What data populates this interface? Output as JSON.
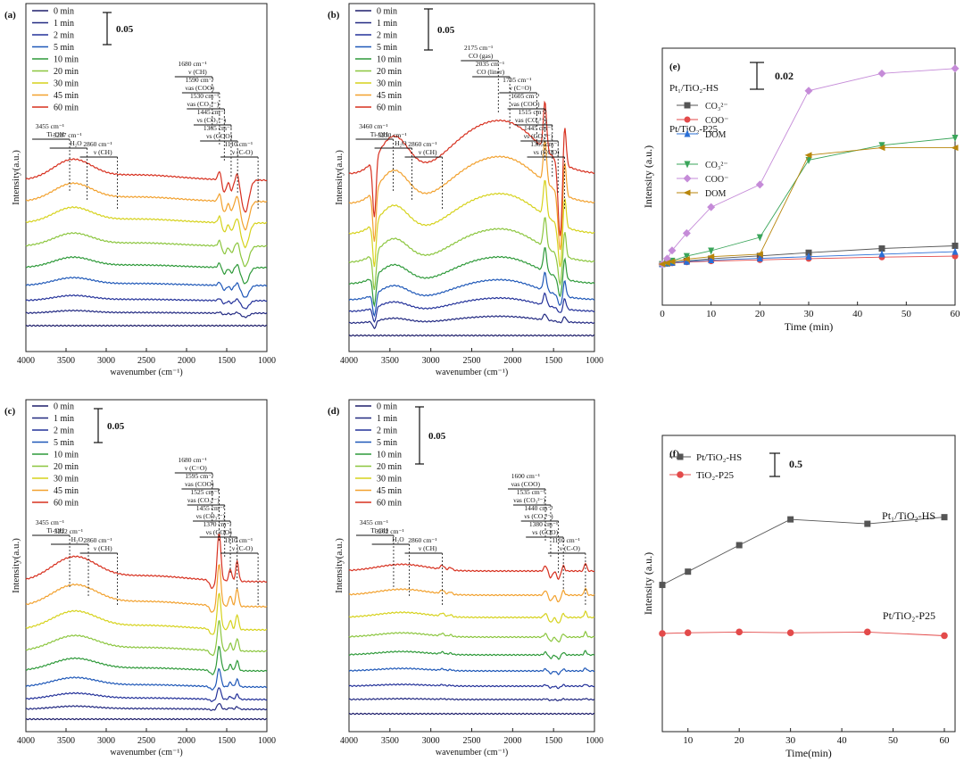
{
  "time_legend": [
    "0 min",
    "1 min",
    "2 min",
    "5 min",
    "10 min",
    "20 min",
    "30 min",
    "45 min",
    "60 min"
  ],
  "time_colors": [
    "#1f1f6b",
    "#232a82",
    "#24329a",
    "#1f58b8",
    "#2f9a3a",
    "#8cc63f",
    "#d6d21c",
    "#f2a12e",
    "#d7301f"
  ],
  "chart_data": [
    {
      "panel": "(a)",
      "type": "line",
      "xlabel": "wavenumber (cm⁻¹)",
      "ylabel": "Intensity(a.u.)",
      "xlim": [
        4000,
        1000
      ],
      "xticks": [
        "4000",
        "3500",
        "3000",
        "2500",
        "2000",
        "1500",
        "1000"
      ],
      "scale_bar": "0.05",
      "series_names": [
        "0 min",
        "1 min",
        "2 min",
        "5 min",
        "10 min",
        "20 min",
        "30 min",
        "45 min",
        "60 min"
      ],
      "annotations": [
        {
          "wn": 3455,
          "lines": [
            "3455 cm⁻¹",
            "Ti-OH"
          ]
        },
        {
          "wn": 3237,
          "lines": [
            "3237 cm⁻¹",
            "H₂O"
          ]
        },
        {
          "wn": 2860,
          "lines": [
            "2860 cm⁻¹",
            "ν (CH)"
          ]
        },
        {
          "wn": 1680,
          "lines": [
            "1680 cm⁻¹",
            "ν (CH)"
          ]
        },
        {
          "wn": 1590,
          "lines": [
            "1590 cm⁻¹",
            "νas (COO)"
          ]
        },
        {
          "wn": 1530,
          "lines": [
            "1530 cm⁻¹",
            "νas (CO₃²⁻)"
          ]
        },
        {
          "wn": 1445,
          "lines": [
            "1445 cm⁻¹",
            "νs (CO₃²⁻)"
          ]
        },
        {
          "wn": 1365,
          "lines": [
            "1365 cm⁻¹",
            "νs (COO)"
          ]
        },
        {
          "wn": 1110,
          "lines": [
            "1110 cm⁻¹",
            "ν (C-O)"
          ]
        }
      ]
    },
    {
      "panel": "(b)",
      "type": "line",
      "xlabel": "wavenumber (cm⁻¹)",
      "ylabel": "Intensity(a.u.)",
      "xlim": [
        4000,
        1000
      ],
      "xticks": [
        "4000",
        "3500",
        "3000",
        "2500",
        "2000",
        "1500",
        "1000"
      ],
      "scale_bar": "0.05",
      "series_names": [
        "0 min",
        "1 min",
        "2 min",
        "5 min",
        "10 min",
        "20 min",
        "30 min",
        "45 min",
        "60 min"
      ],
      "annotations": [
        {
          "wn": 3460,
          "lines": [
            "3460 cm⁻¹",
            "Ti-OH"
          ]
        },
        {
          "wn": 3230,
          "lines": [
            "3230 cm⁻¹",
            "H₂O"
          ]
        },
        {
          "wn": 2860,
          "lines": [
            "2860 cm⁻¹",
            "ν (CH)"
          ]
        },
        {
          "wn": 2175,
          "lines": [
            "2175 cm⁻¹",
            "CO (gas)"
          ]
        },
        {
          "wn": 2035,
          "lines": [
            "2035 cm⁻¹",
            "CO (liner)"
          ]
        },
        {
          "wn": 1705,
          "lines": [
            "1705 cm⁻¹",
            "ν (C=O)"
          ]
        },
        {
          "wn": 1605,
          "lines": [
            "1605 cm⁻¹",
            "νas (COO)"
          ]
        },
        {
          "wn": 1515,
          "lines": [
            "1515 cm⁻¹",
            "νas (CO₃²⁻)"
          ]
        },
        {
          "wn": 1445,
          "lines": [
            "1445 cm⁻¹",
            "νs (CO₃²⁻)"
          ]
        },
        {
          "wn": 1365,
          "lines": [
            "1365 cm⁻¹",
            "νs (COO)"
          ]
        }
      ]
    },
    {
      "panel": "(c)",
      "type": "line",
      "xlabel": "wavenumber (cm⁻¹)",
      "ylabel": "Intensity(a.u.)",
      "xlim": [
        4000,
        1000
      ],
      "xticks": [
        "4000",
        "3500",
        "3000",
        "2500",
        "2000",
        "1500",
        "1000"
      ],
      "scale_bar": "0.05",
      "series_names": [
        "0 min",
        "1 min",
        "2 min",
        "5 min",
        "10 min",
        "20 min",
        "30 min",
        "45 min",
        "60 min"
      ],
      "annotations": [
        {
          "wn": 3455,
          "lines": [
            "3455 cm⁻¹",
            "Ti-OH"
          ]
        },
        {
          "wn": 3222,
          "lines": [
            "3222 cm⁻¹",
            "H₂O"
          ]
        },
        {
          "wn": 2860,
          "lines": [
            "2860 cm⁻¹",
            "ν (CH)"
          ]
        },
        {
          "wn": 1680,
          "lines": [
            "1680 cm⁻¹",
            "ν (C=O)"
          ]
        },
        {
          "wn": 1595,
          "lines": [
            "1595 cm⁻¹",
            "νas (COO)"
          ]
        },
        {
          "wn": 1525,
          "lines": [
            "1525 cm⁻¹",
            "νas (CO₃²⁻)"
          ]
        },
        {
          "wn": 1455,
          "lines": [
            "1455 cm⁻¹",
            "νs (CO₃²⁻)"
          ]
        },
        {
          "wn": 1370,
          "lines": [
            "1370 cm⁻¹",
            "νs (COO)"
          ]
        },
        {
          "wn": 1110,
          "lines": [
            "1110 cm⁻¹",
            "ν (C-O)"
          ]
        }
      ]
    },
    {
      "panel": "(d)",
      "type": "line",
      "xlabel": "wavenumber (cm⁻¹)",
      "ylabel": "Intensity(a.u.)",
      "xlim": [
        4000,
        1000
      ],
      "xticks": [
        "4000",
        "3500",
        "3000",
        "2500",
        "2000",
        "1500",
        "1000"
      ],
      "scale_bar": "0.05",
      "series_names": [
        "0 min",
        "1 min",
        "2 min",
        "5 min",
        "10 min",
        "20 min",
        "30 min",
        "45 min",
        "60 min"
      ],
      "annotations": [
        {
          "wn": 3455,
          "lines": [
            "3455 cm⁻¹",
            "Ti-OH"
          ]
        },
        {
          "wn": 3262,
          "lines": [
            "3262 cm⁻¹",
            "H₂O"
          ]
        },
        {
          "wn": 2860,
          "lines": [
            "2860 cm⁻¹",
            "ν (CH)"
          ]
        },
        {
          "wn": 1600,
          "lines": [
            "1600 cm⁻¹",
            "νas (COO)"
          ]
        },
        {
          "wn": 1535,
          "lines": [
            "1535 cm⁻¹",
            "νas (CO₃²⁻)"
          ]
        },
        {
          "wn": 1440,
          "lines": [
            "1440 cm⁻¹",
            "νs (CO₃²⁻)"
          ]
        },
        {
          "wn": 1380,
          "lines": [
            "1380 cm⁻¹",
            "νs (COO)"
          ]
        },
        {
          "wn": 1110,
          "lines": [
            "1110 cm⁻¹",
            "ν (C-O)"
          ]
        }
      ]
    },
    {
      "panel": "(e)",
      "type": "line",
      "xlabel": "Time (min)",
      "ylabel": "Intensity (a.u.)",
      "xlim": [
        0,
        60
      ],
      "xticks": [
        0,
        10,
        20,
        30,
        40,
        50,
        60
      ],
      "scale_bar": "0.02",
      "group_labels": [
        "Pt₁/TiO₂-HS",
        "Pt/TiO₂-P25"
      ],
      "x": [
        0,
        1,
        2,
        5,
        10,
        20,
        30,
        45,
        60
      ],
      "series": [
        {
          "name": "CO₃²⁻",
          "group": "Pt₁/TiO₂-HS",
          "color": "#555555",
          "marker": "square",
          "values": [
            0.0,
            0.0003,
            0.0006,
            0.0013,
            0.0022,
            0.0033,
            0.0046,
            0.0063,
            0.0074
          ]
        },
        {
          "name": "COO⁻",
          "group": "Pt₁/TiO₂-HS",
          "color": "#e34a4a",
          "marker": "circle",
          "values": [
            0.0,
            0.0002,
            0.0004,
            0.0008,
            0.0012,
            0.0017,
            0.0022,
            0.0028,
            0.0032
          ]
        },
        {
          "name": "DOM",
          "group": "Pt₁/TiO₂-HS",
          "color": "#2a6fd6",
          "marker": "triangle-up",
          "values": [
            0.0,
            0.0003,
            0.0006,
            0.001,
            0.0016,
            0.0023,
            0.003,
            0.004,
            0.005
          ]
        },
        {
          "name": "CO₃²⁻",
          "group": "Pt/TiO₂-P25",
          "color": "#3aa55a",
          "marker": "triangle-down",
          "values": [
            0.0,
            0.0006,
            0.0013,
            0.0032,
            0.0054,
            0.0108,
            0.042,
            0.048,
            0.051
          ]
        },
        {
          "name": "COO⁻",
          "group": "Pt/TiO₂-P25",
          "color": "#c58bd8",
          "marker": "diamond",
          "values": [
            0.0,
            0.0022,
            0.0055,
            0.0125,
            0.023,
            0.0321,
            0.07,
            0.077,
            0.079
          ]
        },
        {
          "name": "DOM",
          "group": "Pt/TiO₂-P25",
          "color": "#b8860b",
          "marker": "triangle-left",
          "values": [
            0.0,
            0.0005,
            0.001,
            0.002,
            0.003,
            0.004,
            0.044,
            0.047,
            0.047
          ]
        }
      ]
    },
    {
      "panel": "(f)",
      "type": "line",
      "xlabel": "Time(min)",
      "ylabel": "Intensity (a.u.)",
      "xlim": [
        5,
        60
      ],
      "xticks": [
        10,
        20,
        30,
        40,
        50,
        60
      ],
      "scale_bar": "0.5",
      "x": [
        5,
        10,
        20,
        30,
        45,
        60
      ],
      "series": [
        {
          "name": "Pt/TiO₂-HS",
          "label": "Pt₁/TiO₂-HS",
          "color": "#555555",
          "marker": "square",
          "values": [
            1.66,
            1.84,
            2.2,
            2.55,
            2.49,
            2.58
          ]
        },
        {
          "name": "TiO₂-P25",
          "label": "Pt/TiO₂-P25",
          "color": "#e34a4a",
          "marker": "circle",
          "values": [
            1.0,
            1.01,
            1.02,
            1.01,
            1.02,
            0.97
          ]
        }
      ]
    }
  ]
}
